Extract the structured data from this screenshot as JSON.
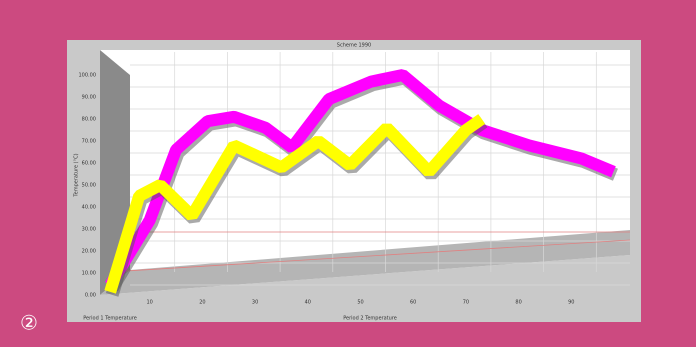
{
  "badge": "②",
  "chart_data": {
    "type": "line3d",
    "title": "Scheme 1990",
    "x_label": "Period 2 Temperature",
    "x_label_left": "Period 1 Temperature",
    "y_label": "Temperature (°C)",
    "xlim": [
      0,
      100
    ],
    "xticks": [
      10,
      20,
      30,
      40,
      50,
      60,
      70,
      80,
      90
    ],
    "ylim": [
      0,
      100
    ],
    "yticks": [
      {
        "value": 0,
        "label": "0.00"
      },
      {
        "value": 10,
        "label": "10.00"
      },
      {
        "value": 20,
        "label": "20.00"
      },
      {
        "value": 30,
        "label": "30.00"
      },
      {
        "value": 40,
        "label": "40.00"
      },
      {
        "value": 50,
        "label": "50.00"
      },
      {
        "value": 60,
        "label": "60.00"
      },
      {
        "value": 70,
        "label": "70.00"
      },
      {
        "value": 80,
        "label": "80.00"
      },
      {
        "value": 90,
        "label": "90.00"
      },
      {
        "value": 100,
        "label": "100.00"
      }
    ],
    "grid": true,
    "series": [
      {
        "color": "#ff00ff",
        "x": [
          2.5,
          10,
          15,
          21,
          26,
          32,
          37,
          44,
          52,
          58,
          65,
          73,
          82,
          92,
          98
        ],
        "values": [
          4.5,
          34,
          66,
          79,
          81,
          76,
          67,
          89,
          97,
          100,
          86,
          75,
          68,
          62,
          56
        ]
      },
      {
        "color": "#ffff00",
        "x": [
          2.5,
          8,
          12,
          18,
          26,
          35,
          42,
          48,
          55,
          63,
          70,
          73
        ],
        "values": [
          1.4,
          45,
          50,
          36,
          68,
          58,
          70,
          59,
          76,
          56,
          75,
          80
        ]
      }
    ]
  }
}
